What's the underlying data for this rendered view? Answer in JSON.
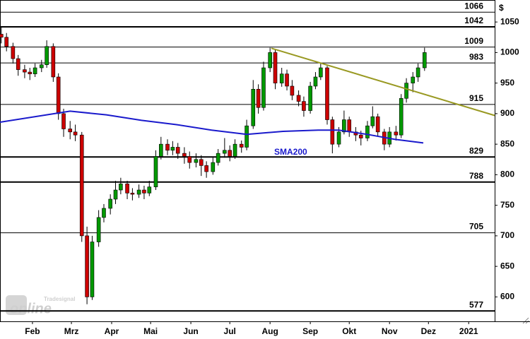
{
  "chart_data": {
    "type": "candlestick",
    "currency_label": "$",
    "watermark": [
      "Tradesignal",
      "online"
    ],
    "xlim": [
      20,
      401
    ],
    "ylim": [
      560,
      1086
    ],
    "yticks": [
      600,
      650,
      700,
      750,
      800,
      850,
      900,
      950,
      1000,
      1050
    ],
    "xticks": [
      {
        "value": 45,
        "label": "Feb"
      },
      {
        "value": 75,
        "label": "Mrz"
      },
      {
        "value": 106,
        "label": "Apr"
      },
      {
        "value": 136,
        "label": "Mai"
      },
      {
        "value": 167,
        "label": "Jun"
      },
      {
        "value": 197,
        "label": "Jul"
      },
      {
        "value": 228,
        "label": "Aug"
      },
      {
        "value": 259,
        "label": "Sep"
      },
      {
        "value": 289,
        "label": "Okt"
      },
      {
        "value": 320,
        "label": "Nov"
      },
      {
        "value": 350,
        "label": "Dez"
      },
      {
        "value": 381,
        "label": "2021"
      }
    ],
    "up_color": "#009900",
    "down_color": "#cc0000",
    "candles": {
      "x": [
        21,
        25,
        30,
        34,
        39,
        43,
        47,
        52,
        56,
        61,
        65,
        69,
        74,
        78,
        83,
        87,
        91,
        96,
        100,
        105,
        109,
        113,
        118,
        122,
        127,
        131,
        135,
        140,
        144,
        149,
        153,
        157,
        162,
        166,
        171,
        175,
        179,
        184,
        188,
        193,
        197,
        201,
        206,
        210,
        215,
        219,
        223,
        228,
        232,
        237,
        241,
        245,
        250,
        254,
        259,
        263,
        267,
        272,
        276,
        281,
        285,
        289,
        294,
        298,
        303,
        307,
        311,
        316,
        320,
        325,
        329,
        333,
        338,
        342,
        347
      ],
      "open": [
        1030,
        1025,
        1010,
        990,
        972,
        968,
        965,
        975,
        980,
        1010,
        960,
        900,
        875,
        870,
        865,
        700,
        600,
        690,
        730,
        745,
        760,
        775,
        785,
        770,
        768,
        775,
        770,
        780,
        830,
        850,
        840,
        845,
        835,
        830,
        820,
        825,
        815,
        805,
        820,
        835,
        840,
        830,
        850,
        845,
        880,
        940,
        910,
        975,
        1000,
        950,
        965,
        945,
        930,
        920,
        905,
        945,
        960,
        975,
        890,
        850,
        870,
        890,
        870,
        865,
        860,
        880,
        895,
        870,
        850,
        870,
        865,
        925,
        950,
        960,
        975
      ],
      "high": [
        1042,
        1032,
        1016,
        996,
        980,
        975,
        982,
        988,
        1020,
        1015,
        966,
        908,
        888,
        882,
        870,
        715,
        700,
        742,
        752,
        768,
        790,
        795,
        790,
        778,
        784,
        782,
        790,
        840,
        862,
        858,
        855,
        852,
        845,
        838,
        835,
        832,
        822,
        828,
        842,
        860,
        848,
        858,
        856,
        890,
        955,
        948,
        985,
        1008,
        1004,
        975,
        972,
        955,
        938,
        928,
        952,
        968,
        982,
        978,
        895,
        878,
        905,
        895,
        878,
        872,
        888,
        912,
        900,
        875,
        878,
        880,
        932,
        958,
        968,
        982,
        1008
      ],
      "low": [
        1015,
        1002,
        982,
        962,
        958,
        955,
        960,
        968,
        975,
        952,
        890,
        862,
        858,
        855,
        690,
        588,
        595,
        682,
        722,
        735,
        752,
        768,
        760,
        758,
        762,
        760,
        765,
        775,
        825,
        832,
        832,
        826,
        818,
        810,
        812,
        798,
        795,
        800,
        815,
        828,
        822,
        826,
        836,
        840,
        875,
        900,
        905,
        968,
        940,
        944,
        938,
        922,
        912,
        895,
        900,
        940,
        955,
        882,
        835,
        845,
        866,
        862,
        855,
        848,
        855,
        876,
        862,
        840,
        845,
        856,
        860,
        918,
        935,
        952,
        970
      ],
      "close": [
        1025,
        1010,
        990,
        972,
        968,
        965,
        975,
        980,
        1010,
        960,
        900,
        875,
        870,
        865,
        700,
        600,
        690,
        730,
        745,
        760,
        775,
        785,
        770,
        768,
        775,
        770,
        780,
        830,
        850,
        840,
        845,
        835,
        830,
        820,
        825,
        815,
        805,
        820,
        835,
        840,
        830,
        850,
        845,
        880,
        940,
        910,
        975,
        1000,
        950,
        965,
        945,
        930,
        920,
        905,
        945,
        960,
        975,
        890,
        850,
        870,
        890,
        870,
        865,
        860,
        880,
        895,
        870,
        850,
        870,
        865,
        925,
        950,
        960,
        975,
        1000
      ]
    },
    "sma": {
      "name": "SMA200",
      "color": "#1a1acc",
      "x": [
        20,
        74,
        102,
        129,
        156,
        183,
        210,
        238,
        265,
        281,
        303,
        324,
        346
      ],
      "values": [
        886,
        904,
        898,
        889,
        882,
        873,
        866,
        871,
        873,
        873,
        866,
        858,
        852
      ]
    },
    "trendline": {
      "color": "#999922",
      "x": [
        229,
        401
      ],
      "values": [
        1007,
        897
      ]
    },
    "levels": [
      {
        "value": 1066,
        "bold": false
      },
      {
        "value": 1042,
        "bold": true
      },
      {
        "value": 1009,
        "bold": false
      },
      {
        "value": 983,
        "bold": false
      },
      {
        "value": 915,
        "bold": false
      },
      {
        "value": 829,
        "bold": true
      },
      {
        "value": 788,
        "bold": true
      },
      {
        "value": 705,
        "bold": false
      },
      {
        "value": 577,
        "bold": true
      }
    ]
  }
}
